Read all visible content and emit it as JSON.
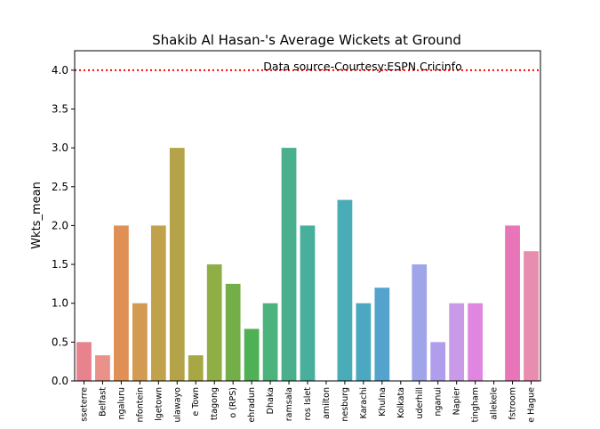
{
  "chart_data": {
    "type": "bar",
    "title": "Shakib Al Hasan-'s Average Wickets at Ground",
    "xlabel": "",
    "ylabel": "Wkts_mean",
    "ylim": [
      0,
      4.25
    ],
    "yticks": [
      0.0,
      0.5,
      1.0,
      1.5,
      2.0,
      2.5,
      3.0,
      3.5,
      4.0
    ],
    "ytick_labels": [
      "0.0",
      "0.5",
      "1.0",
      "1.5",
      "2.0",
      "2.5",
      "3.0",
      "3.5",
      "4.0"
    ],
    "categories": [
      "sseterre",
      "Belfast",
      "ngaluru",
      "nfontein",
      "lgetown",
      "ulawayo",
      "e Town",
      "ttagong",
      "o (RPS)",
      "ehradun",
      "Dhaka",
      "ramsala",
      "ros Islet",
      "amilton",
      "nesburg",
      "Karachi",
      "Khulna",
      "Kolkata",
      "uderhill",
      "nganui",
      "Napier",
      "tingham",
      "allekele",
      "fstroom",
      "e Hague"
    ],
    "values": [
      0.5,
      0.33,
      2.0,
      1.0,
      2.0,
      3.0,
      0.33,
      1.5,
      1.25,
      0.67,
      1.0,
      3.0,
      2.0,
      0.0,
      2.33,
      1.0,
      1.2,
      0.0,
      1.5,
      0.5,
      1.0,
      1.0,
      0.0,
      2.0,
      1.67
    ],
    "colors": [
      "#e8828c",
      "#e8928a",
      "#e09055",
      "#d39a51",
      "#c1a24c",
      "#b5a349",
      "#a7a844",
      "#8fae46",
      "#74ae48",
      "#4fb055",
      "#4db37c",
      "#4aaf8d",
      "#48af9d",
      "#47aeaa",
      "#49acb7",
      "#4aa8c0",
      "#53a3cd",
      "#7d9fe0",
      "#a0a5ea",
      "#b09eec",
      "#c99ae8",
      "#e086e1",
      "#e77ed6",
      "#e875b7",
      "#e88daf"
    ],
    "reference_line": {
      "y": 4.0,
      "color": "#ff0000",
      "style": "dotted"
    },
    "annotation": "Data source-Courtesy:ESPN Cricinfo",
    "grid": false,
    "legend": "none"
  }
}
